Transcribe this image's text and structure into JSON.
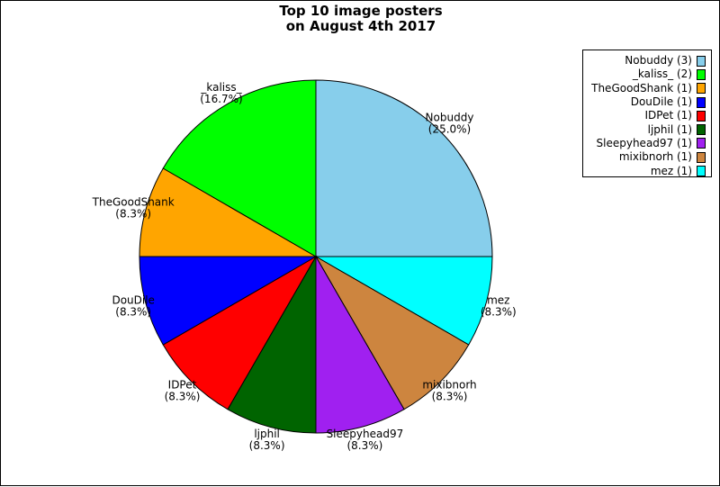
{
  "chart_data": {
    "type": "pie",
    "title": [
      "Top 10 image posters",
      "on August 4th 2017"
    ],
    "slices": [
      {
        "label": "Nobuddy",
        "count": 3,
        "percent": "25.0%",
        "color": "#87ceeb"
      },
      {
        "label": "mez",
        "count": 1,
        "percent": "8.3%",
        "color": "#00ffff"
      },
      {
        "label": "mixibnorh",
        "count": 1,
        "percent": "8.3%",
        "color": "#cd853f"
      },
      {
        "label": "Sleepyhead97",
        "count": 1,
        "percent": "8.3%",
        "color": "#a020f0"
      },
      {
        "label": "ljphil",
        "count": 1,
        "percent": "8.3%",
        "color": "#006400"
      },
      {
        "label": "IDPet",
        "count": 1,
        "percent": "8.3%",
        "color": "#ff0000"
      },
      {
        "label": "DouDile",
        "count": 1,
        "percent": "8.3%",
        "color": "#0000ff"
      },
      {
        "label": "TheGoodShank",
        "count": 1,
        "percent": "8.3%",
        "color": "#ffa500"
      },
      {
        "label": "_kaliss_",
        "count": 2,
        "percent": "16.7%",
        "color": "#00ff00"
      }
    ],
    "legend": {
      "placement": "top-right",
      "entries": [
        {
          "text": "Nobuddy (3)",
          "color": "#87ceeb"
        },
        {
          "text": "_kaliss_ (2)",
          "color": "#00ff00"
        },
        {
          "text": "TheGoodShank (1)",
          "color": "#ffa500"
        },
        {
          "text": "DouDile (1)",
          "color": "#0000ff"
        },
        {
          "text": "IDPet (1)",
          "color": "#ff0000"
        },
        {
          "text": "ljphil (1)",
          "color": "#006400"
        },
        {
          "text": "Sleepyhead97 (1)",
          "color": "#a020f0"
        },
        {
          "text": "mixibnorh (1)",
          "color": "#cd853f"
        },
        {
          "text": "mez (1)",
          "color": "#00ffff"
        }
      ]
    }
  }
}
